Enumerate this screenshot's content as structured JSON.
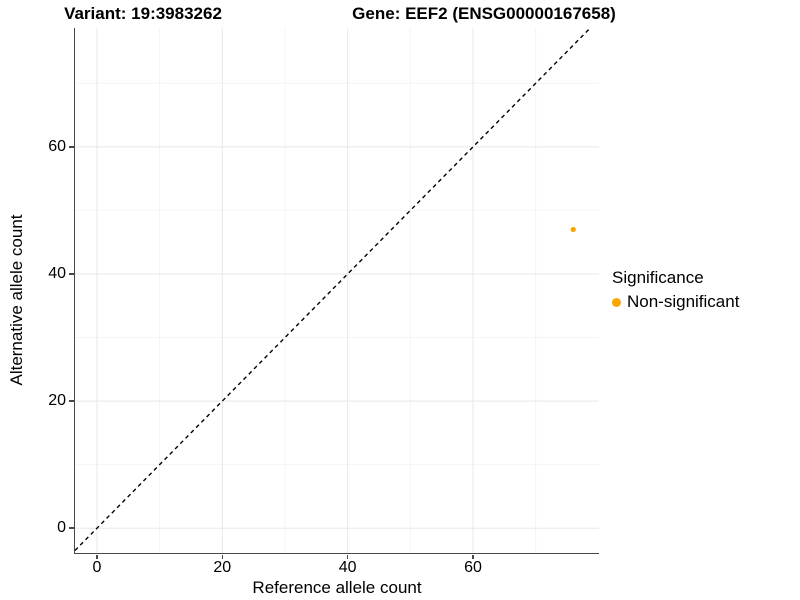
{
  "header": {
    "variant_title": "Variant: 19:3983262",
    "gene_title": "Gene: EEF2 (ENSG00000167658)"
  },
  "chart_data": {
    "type": "scatter",
    "xlabel": "Reference allele count",
    "ylabel": "Alternative allele count",
    "xlim": [
      -3.5,
      80.1
    ],
    "ylim": [
      -3.9,
      78.7
    ],
    "x_ticks": [
      0,
      20,
      40,
      60
    ],
    "y_ticks": [
      0,
      20,
      40,
      60
    ],
    "x_minor_ticks": [
      10,
      30,
      50,
      70
    ],
    "y_minor_ticks": [
      10,
      30,
      50,
      70
    ],
    "grid": "major and minor gridlines on white background",
    "points": [
      {
        "x": 76,
        "y": 47,
        "series": "Non-significant"
      }
    ],
    "point_color": "#FFA500",
    "point_radius_px": 2.6,
    "identity_line": {
      "slope": 1,
      "intercept": 0,
      "style": "dashed",
      "color": "#000000"
    },
    "legend": {
      "position": "right",
      "title": "Significance",
      "entries": [
        {
          "label": "Non-significant",
          "color": "#FFA500"
        }
      ]
    },
    "colors": {
      "grid_major": "#e8e8e8",
      "grid_minor": "#f4f4f4",
      "axis_line": "#474747",
      "text": "#000000"
    }
  }
}
